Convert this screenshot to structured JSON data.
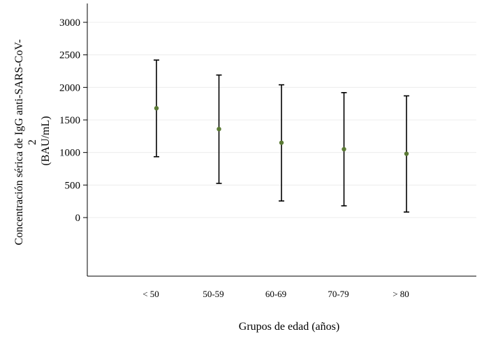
{
  "chart_data": {
    "type": "scatter",
    "xlabel": "Grupos de edad (años)",
    "ylabel_lines": [
      "Concentración sérica de IgG anti-SARS-CoV-",
      "2",
      "(BAU/mL)"
    ],
    "categories": [
      "< 50",
      "50-59",
      "60-69",
      "70-79",
      "> 80"
    ],
    "series": [
      {
        "mean": [
          1680,
          1360,
          1150,
          1050,
          980
        ],
        "lower": [
          935,
          525,
          255,
          180,
          85
        ],
        "upper": [
          2420,
          2190,
          2040,
          1920,
          1870
        ]
      }
    ],
    "yticks": [
      0,
      500,
      1000,
      1500,
      2000,
      2500,
      3000
    ],
    "ylim": [
      -900,
      3300
    ],
    "grid": true,
    "colors": {
      "point": "#5b7a35",
      "errorbar": "#000000",
      "grid": "#ececec",
      "axis": "#000000"
    }
  }
}
